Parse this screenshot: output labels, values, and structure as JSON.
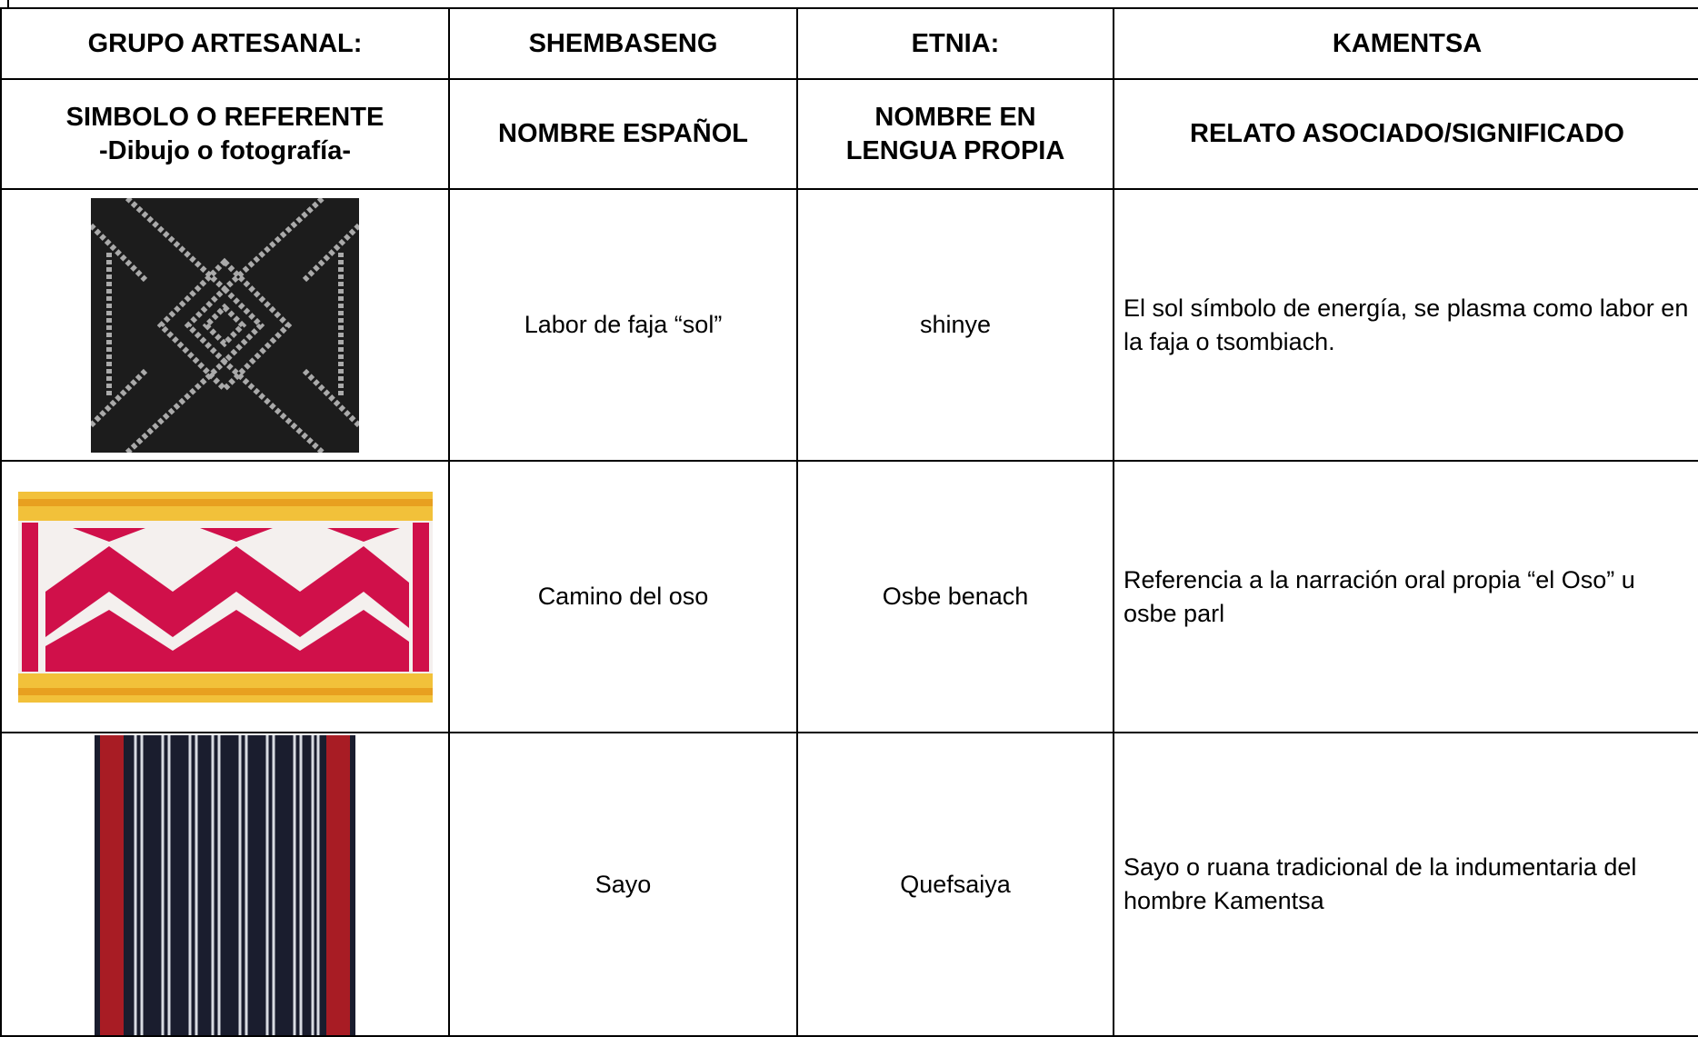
{
  "table": {
    "header": [
      "GRUPO ARTESANAL:",
      "SHEMBASENG",
      "ETNIA:",
      "KAMENTSA"
    ],
    "columns": {
      "symbol": [
        "SIMBOLO O REFERENTE",
        "-Dibujo o fotografía-"
      ],
      "spanish_name": "NOMBRE ESPAÑOL",
      "native_name": [
        "NOMBRE EN",
        "LENGUA PROPIA"
      ],
      "story": "RELATO ASOCIADO/SIGNIFICADO"
    },
    "rows": [
      {
        "spanish_name": "Labor de faja “sol”",
        "native_name": "shinye",
        "story": "El sol símbolo de energía, se plasma como labor en la faja o tsombiach."
      },
      {
        "spanish_name": "Camino del oso",
        "native_name": "Osbe benach",
        "story": "Referencia a la narración oral propia “el Oso” u osbe parl"
      },
      {
        "spanish_name": "Sayo",
        "native_name": "Quefsaiya",
        "story": "Sayo o ruana tradicional de la indumentaria del hombre Kamentsa"
      }
    ]
  }
}
